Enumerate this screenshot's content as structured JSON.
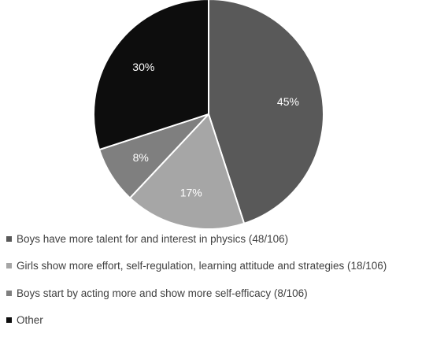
{
  "chart_data": {
    "type": "pie",
    "title": "",
    "legend_position": "bottom",
    "slices": [
      {
        "label": "Boys have more talent for and interest in physics (48/106)",
        "value": 45,
        "display": "45%",
        "color": "#595959"
      },
      {
        "label": "Girls show more effort, self-regulation, learning attitude and strategies (18/106)",
        "value": 17,
        "display": "17%",
        "color": "#a6a6a6"
      },
      {
        "label": "Boys start by acting more and show more self-efficacy (8/106)",
        "value": 8,
        "display": "8%",
        "color": "#7f7f7f"
      },
      {
        "label": "Other",
        "value": 30,
        "display": "30%",
        "color": "#0d0d0d"
      }
    ]
  }
}
